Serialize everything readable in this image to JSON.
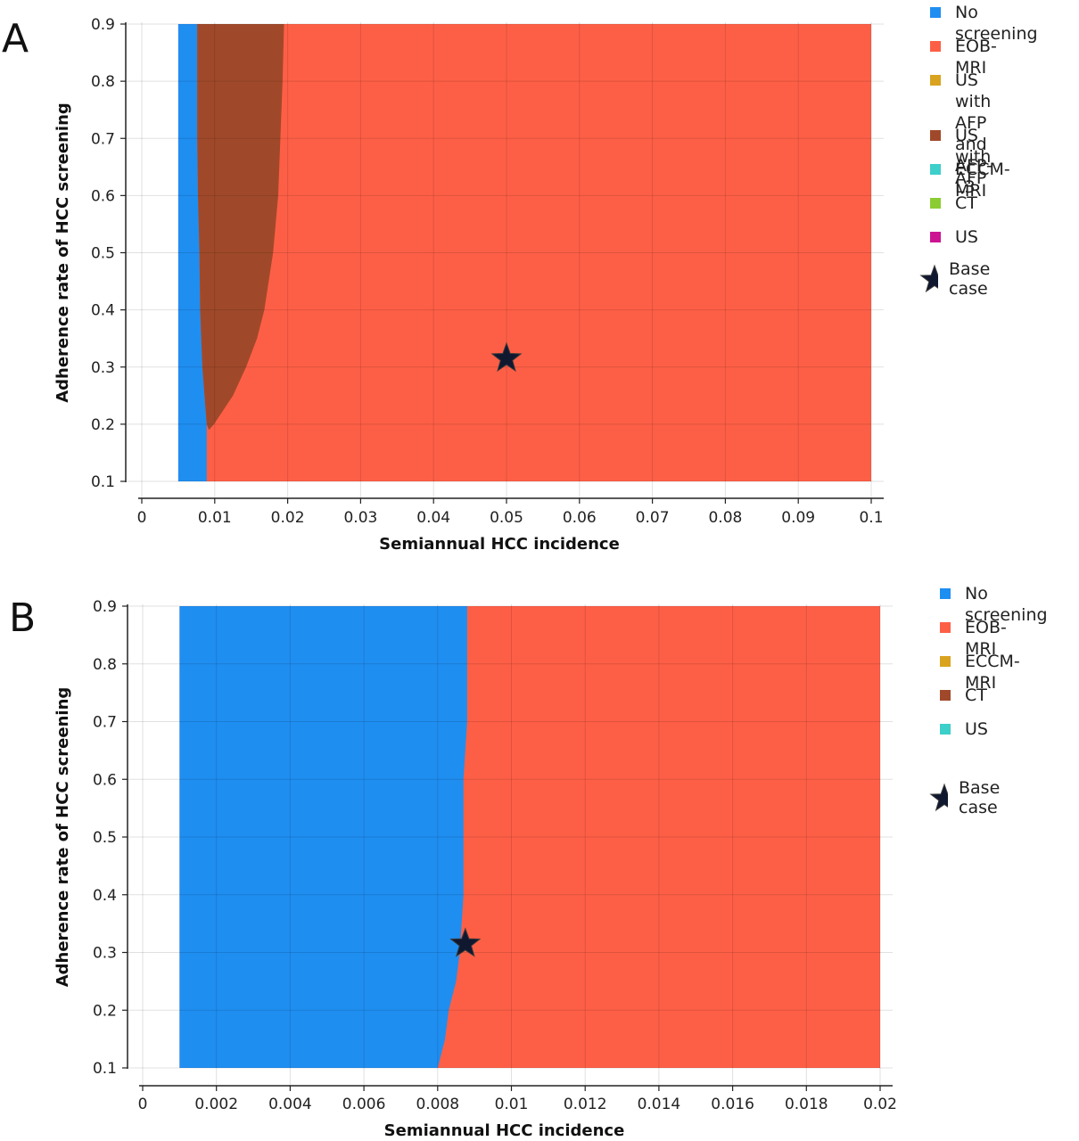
{
  "chart_data": [
    {
      "panel": "A",
      "type": "area",
      "xlabel": "Semiannual HCC incidence",
      "ylabel": "Adherence rate of HCC screening",
      "xlim": [
        0,
        0.1
      ],
      "ylim": [
        0.1,
        0.9
      ],
      "x_ticks": [
        "0",
        "0.01",
        "0.02",
        "0.03",
        "0.04",
        "0.05",
        "0.06",
        "0.07",
        "0.08",
        "0.09",
        "0.1"
      ],
      "y_ticks": [
        "0.1",
        "0.2",
        "0.3",
        "0.4",
        "0.5",
        "0.6",
        "0.7",
        "0.8",
        "0.9"
      ],
      "grid": true,
      "legend_position": "right",
      "legend": [
        {
          "label": "No screening",
          "color": "#1f8ef1"
        },
        {
          "label": "EOB-MRI",
          "color": "#fd5f46"
        },
        {
          "label": "US with AFP\nand AFP-L3",
          "color": "#d9a320"
        },
        {
          "label": "US with AFP",
          "color": "#a0492a"
        },
        {
          "label": "ECCM-MRI",
          "color": "#3dcfca"
        },
        {
          "label": "CT",
          "color": "#8ccc33"
        },
        {
          "label": "US",
          "color": "#cc1493"
        }
      ],
      "base_case_label": "Base case",
      "base_case": {
        "x": 0.05,
        "y": 0.315
      },
      "regions": [
        {
          "strategy": "No screening",
          "color": "#1f8ef1",
          "x_min_boundary": [
            [
              0.1,
              0.005
            ],
            [
              0.9,
              0.005
            ]
          ],
          "x_max_boundary": [
            [
              0.1,
              0.0089
            ],
            [
              0.2,
              0.0089
            ],
            [
              0.3,
              0.0083
            ],
            [
              0.4,
              0.008
            ],
            [
              0.5,
              0.0079
            ],
            [
              0.6,
              0.0077
            ],
            [
              0.7,
              0.0076
            ],
            [
              0.8,
              0.0076
            ],
            [
              0.9,
              0.0076
            ]
          ]
        },
        {
          "strategy": "US with AFP",
          "color": "#a0492a",
          "boundary": [
            [
              0.19,
              0.0092
            ],
            [
              0.2,
              0.0099
            ],
            [
              0.25,
              0.0125
            ],
            [
              0.3,
              0.0143
            ],
            [
              0.35,
              0.0158
            ],
            [
              0.4,
              0.0168
            ],
            [
              0.5,
              0.018
            ],
            [
              0.6,
              0.0187
            ],
            [
              0.7,
              0.019
            ],
            [
              0.8,
              0.0193
            ],
            [
              0.9,
              0.0195
            ]
          ]
        },
        {
          "strategy": "EOB-MRI",
          "color": "#fd5f46",
          "x_max": 0.1
        }
      ]
    },
    {
      "panel": "B",
      "type": "area",
      "xlabel": "Semiannual HCC incidence",
      "ylabel": "Adherence rate of HCC screening",
      "xlim": [
        0,
        0.02
      ],
      "ylim": [
        0.1,
        0.9
      ],
      "x_ticks": [
        "0",
        "0.002",
        "0.004",
        "0.006",
        "0.008",
        "0.01",
        "0.012",
        "0.014",
        "0.016",
        "0.018",
        "0.02"
      ],
      "y_ticks": [
        "0.1",
        "0.2",
        "0.3",
        "0.4",
        "0.5",
        "0.6",
        "0.7",
        "0.8",
        "0.9"
      ],
      "grid": true,
      "legend_position": "right",
      "legend": [
        {
          "label": "No screening",
          "color": "#1f8ef1"
        },
        {
          "label": "EOB-MRI",
          "color": "#fd5f46"
        },
        {
          "label": "ECCM-MRI",
          "color": "#d9a320"
        },
        {
          "label": "CT",
          "color": "#a0492a"
        },
        {
          "label": "US",
          "color": "#3dcfca"
        }
      ],
      "base_case_label": "Base case",
      "base_case": {
        "x": 0.00875,
        "y": 0.315
      },
      "regions": [
        {
          "strategy": "No screening",
          "color": "#1f8ef1",
          "x_min_boundary": [
            [
              0.1,
              0.001
            ],
            [
              0.9,
              0.001
            ]
          ],
          "x_max_boundary": [
            [
              0.1,
              0.008
            ],
            [
              0.15,
              0.0082
            ],
            [
              0.2,
              0.0083
            ],
            [
              0.25,
              0.0085
            ],
            [
              0.3,
              0.0086
            ],
            [
              0.4,
              0.0087
            ],
            [
              0.5,
              0.0087
            ],
            [
              0.6,
              0.0087
            ],
            [
              0.7,
              0.0088
            ],
            [
              0.8,
              0.0088
            ],
            [
              0.9,
              0.0088
            ]
          ]
        },
        {
          "strategy": "EOB-MRI",
          "color": "#fd5f46",
          "x_max": 0.02
        }
      ]
    }
  ]
}
